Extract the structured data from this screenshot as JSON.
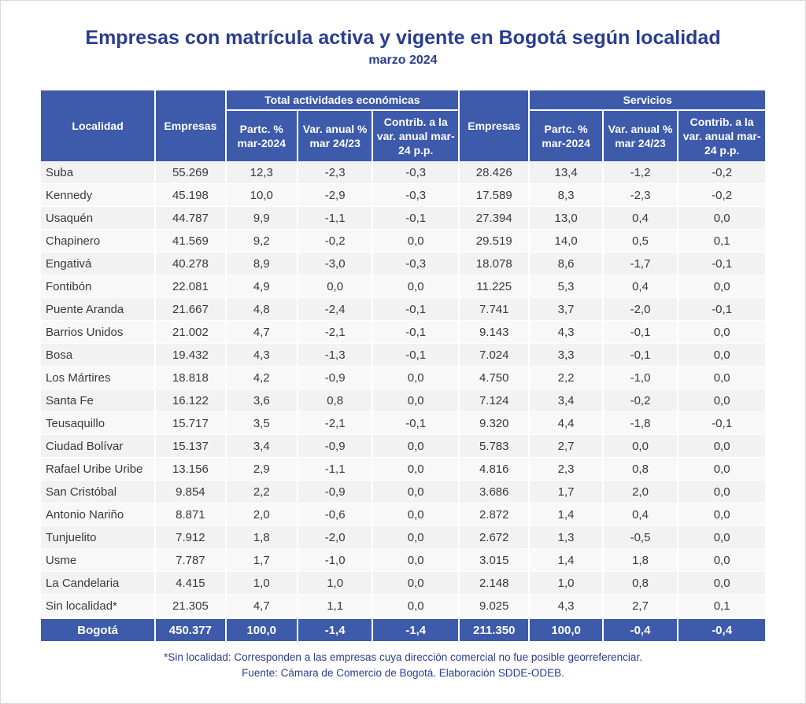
{
  "title": "Empresas con matrícula activa y vigente en Bogotá según localidad",
  "subtitle": "marzo 2024",
  "headers": {
    "localidad": "Localidad",
    "empresas_total": "Empresas",
    "group_total": "Total actividades económicas",
    "partc_total": "Partc. % mar-2024",
    "var_total": "Var. anual % mar 24/23",
    "contrib_total": "Contrib. a la var. anual mar-24 p.p.",
    "empresas_serv": "Empresas",
    "group_serv": "Servicios",
    "partc_serv": "Partc. % mar-2024",
    "var_serv": "Var. anual % mar 24/23",
    "contrib_serv": "Contrib. a la var. anual mar-24 p.p."
  },
  "rows": [
    [
      "Suba",
      "55.269",
      "12,3",
      "-2,3",
      "-0,3",
      "28.426",
      "13,4",
      "-1,2",
      "-0,2"
    ],
    [
      "Kennedy",
      "45.198",
      "10,0",
      "-2,9",
      "-0,3",
      "17.589",
      "8,3",
      "-2,3",
      "-0,2"
    ],
    [
      "Usaquén",
      "44.787",
      "9,9",
      "-1,1",
      "-0,1",
      "27.394",
      "13,0",
      "0,4",
      "0,0"
    ],
    [
      "Chapinero",
      "41.569",
      "9,2",
      "-0,2",
      "0,0",
      "29.519",
      "14,0",
      "0,5",
      "0,1"
    ],
    [
      "Engativá",
      "40.278",
      "8,9",
      "-3,0",
      "-0,3",
      "18.078",
      "8,6",
      "-1,7",
      "-0,1"
    ],
    [
      "Fontibón",
      "22.081",
      "4,9",
      "0,0",
      "0,0",
      "11.225",
      "5,3",
      "0,4",
      "0,0"
    ],
    [
      "Puente Aranda",
      "21.667",
      "4,8",
      "-2,4",
      "-0,1",
      "7.741",
      "3,7",
      "-2,0",
      "-0,1"
    ],
    [
      "Barrios Unidos",
      "21.002",
      "4,7",
      "-2,1",
      "-0,1",
      "9.143",
      "4,3",
      "-0,1",
      "0,0"
    ],
    [
      "Bosa",
      "19.432",
      "4,3",
      "-1,3",
      "-0,1",
      "7.024",
      "3,3",
      "-0,1",
      "0,0"
    ],
    [
      "Los Mártires",
      "18.818",
      "4,2",
      "-0,9",
      "0,0",
      "4.750",
      "2,2",
      "-1,0",
      "0,0"
    ],
    [
      "Santa Fe",
      "16.122",
      "3,6",
      "0,8",
      "0,0",
      "7.124",
      "3,4",
      "-0,2",
      "0,0"
    ],
    [
      "Teusaquillo",
      "15.717",
      "3,5",
      "-2,1",
      "-0,1",
      "9.320",
      "4,4",
      "-1,8",
      "-0,1"
    ],
    [
      "Ciudad Bolívar",
      "15.137",
      "3,4",
      "-0,9",
      "0,0",
      "5.783",
      "2,7",
      "0,0",
      "0,0"
    ],
    [
      "Rafael Uribe Uribe",
      "13.156",
      "2,9",
      "-1,1",
      "0,0",
      "4.816",
      "2,3",
      "0,8",
      "0,0"
    ],
    [
      "San Cristóbal",
      "9.854",
      "2,2",
      "-0,9",
      "0,0",
      "3.686",
      "1,7",
      "2,0",
      "0,0"
    ],
    [
      "Antonio Nariño",
      "8.871",
      "2,0",
      "-0,6",
      "0,0",
      "2.872",
      "1,4",
      "0,4",
      "0,0"
    ],
    [
      "Tunjuelito",
      "7.912",
      "1,8",
      "-2,0",
      "0,0",
      "2.672",
      "1,3",
      "-0,5",
      "0,0"
    ],
    [
      "Usme",
      "7.787",
      "1,7",
      "-1,0",
      "0,0",
      "3.015",
      "1,4",
      "1,8",
      "0,0"
    ],
    [
      "La Candelaria",
      "4.415",
      "1,0",
      "1,0",
      "0,0",
      "2.148",
      "1,0",
      "0,8",
      "0,0"
    ],
    [
      "Sin localidad*",
      "21.305",
      "4,7",
      "1,1",
      "0,0",
      "9.025",
      "4,3",
      "2,7",
      "0,1"
    ]
  ],
  "total": [
    "Bogotá",
    "450.377",
    "100,0",
    "-1,4",
    "-1,4",
    "211.350",
    "100,0",
    "-0,4",
    "-0,4"
  ],
  "notes": {
    "footnote": "*Sin localidad: Corresponden a las empresas cuya dirección comercial no fue posible georreferenciar.",
    "source": "Fuente: Cámara de Comercio de Bogotá. Elaboración SDDE-ODEB."
  },
  "colors": {
    "header_bg": "#3d5aab",
    "title": "#2a3d8f",
    "row_bg": "#f2f2f2"
  }
}
